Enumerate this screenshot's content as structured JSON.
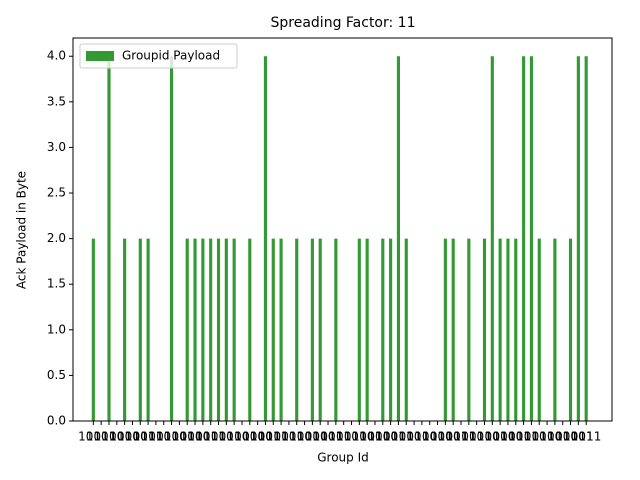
{
  "chart_data": {
    "type": "bar",
    "title": "Spreading Factor: 11",
    "x_label": "Group Id",
    "y_label": "Ack Payload in Byte",
    "categories": [
      "1010",
      "1011",
      "1100",
      "1101",
      "1000",
      "1110",
      "1001",
      "1111",
      "1010",
      "1011",
      "1100",
      "1101",
      "1000",
      "1110",
      "1001",
      "1111",
      "1010",
      "1011",
      "1100",
      "1101",
      "1000",
      "1110",
      "1001",
      "1111",
      "1010",
      "1011",
      "1100",
      "1101",
      "1000",
      "1110",
      "1001",
      "1111",
      "1010",
      "1011",
      "1100",
      "1101",
      "1000",
      "1110",
      "1001",
      "1111",
      "1010",
      "1011",
      "1100",
      "1101",
      "1000",
      "1110",
      "1001",
      "1111",
      "1010",
      "1011",
      "1100",
      "1101",
      "1000",
      "1110",
      "1001",
      "1111",
      "1010",
      "1011",
      "1100",
      "1101",
      "1000",
      "1110",
      "1001",
      "1111"
    ],
    "series": [
      {
        "name": "Groupid Payload",
        "color": "#339933",
        "values": [
          2,
          0,
          4,
          0,
          2,
          0,
          2,
          2,
          0,
          0,
          4,
          0,
          2,
          2,
          2,
          2,
          2,
          2,
          2,
          0,
          2,
          0,
          4,
          2,
          2,
          0,
          2,
          0,
          2,
          2,
          0,
          2,
          0,
          0,
          2,
          2,
          0,
          2,
          2,
          4,
          2,
          0,
          0,
          0,
          0,
          2,
          2,
          0,
          2,
          0,
          2,
          4,
          2,
          2,
          2,
          4,
          4,
          2,
          0,
          2,
          0,
          2,
          4,
          4
        ]
      }
    ],
    "ylim": [
      0,
      4.2
    ],
    "yticks": [
      {
        "value": 0,
        "label": "0.0"
      },
      {
        "value": 0.5,
        "label": "0.5"
      },
      {
        "value": 1,
        "label": "1.0"
      },
      {
        "value": 1.5,
        "label": "1.5"
      },
      {
        "value": 2,
        "label": "2.0"
      },
      {
        "value": 2.5,
        "label": "2.5"
      },
      {
        "value": 3,
        "label": "3.0"
      },
      {
        "value": 3.5,
        "label": "3.5"
      },
      {
        "value": 4,
        "label": "4.0"
      }
    ],
    "legend": "upper left"
  }
}
